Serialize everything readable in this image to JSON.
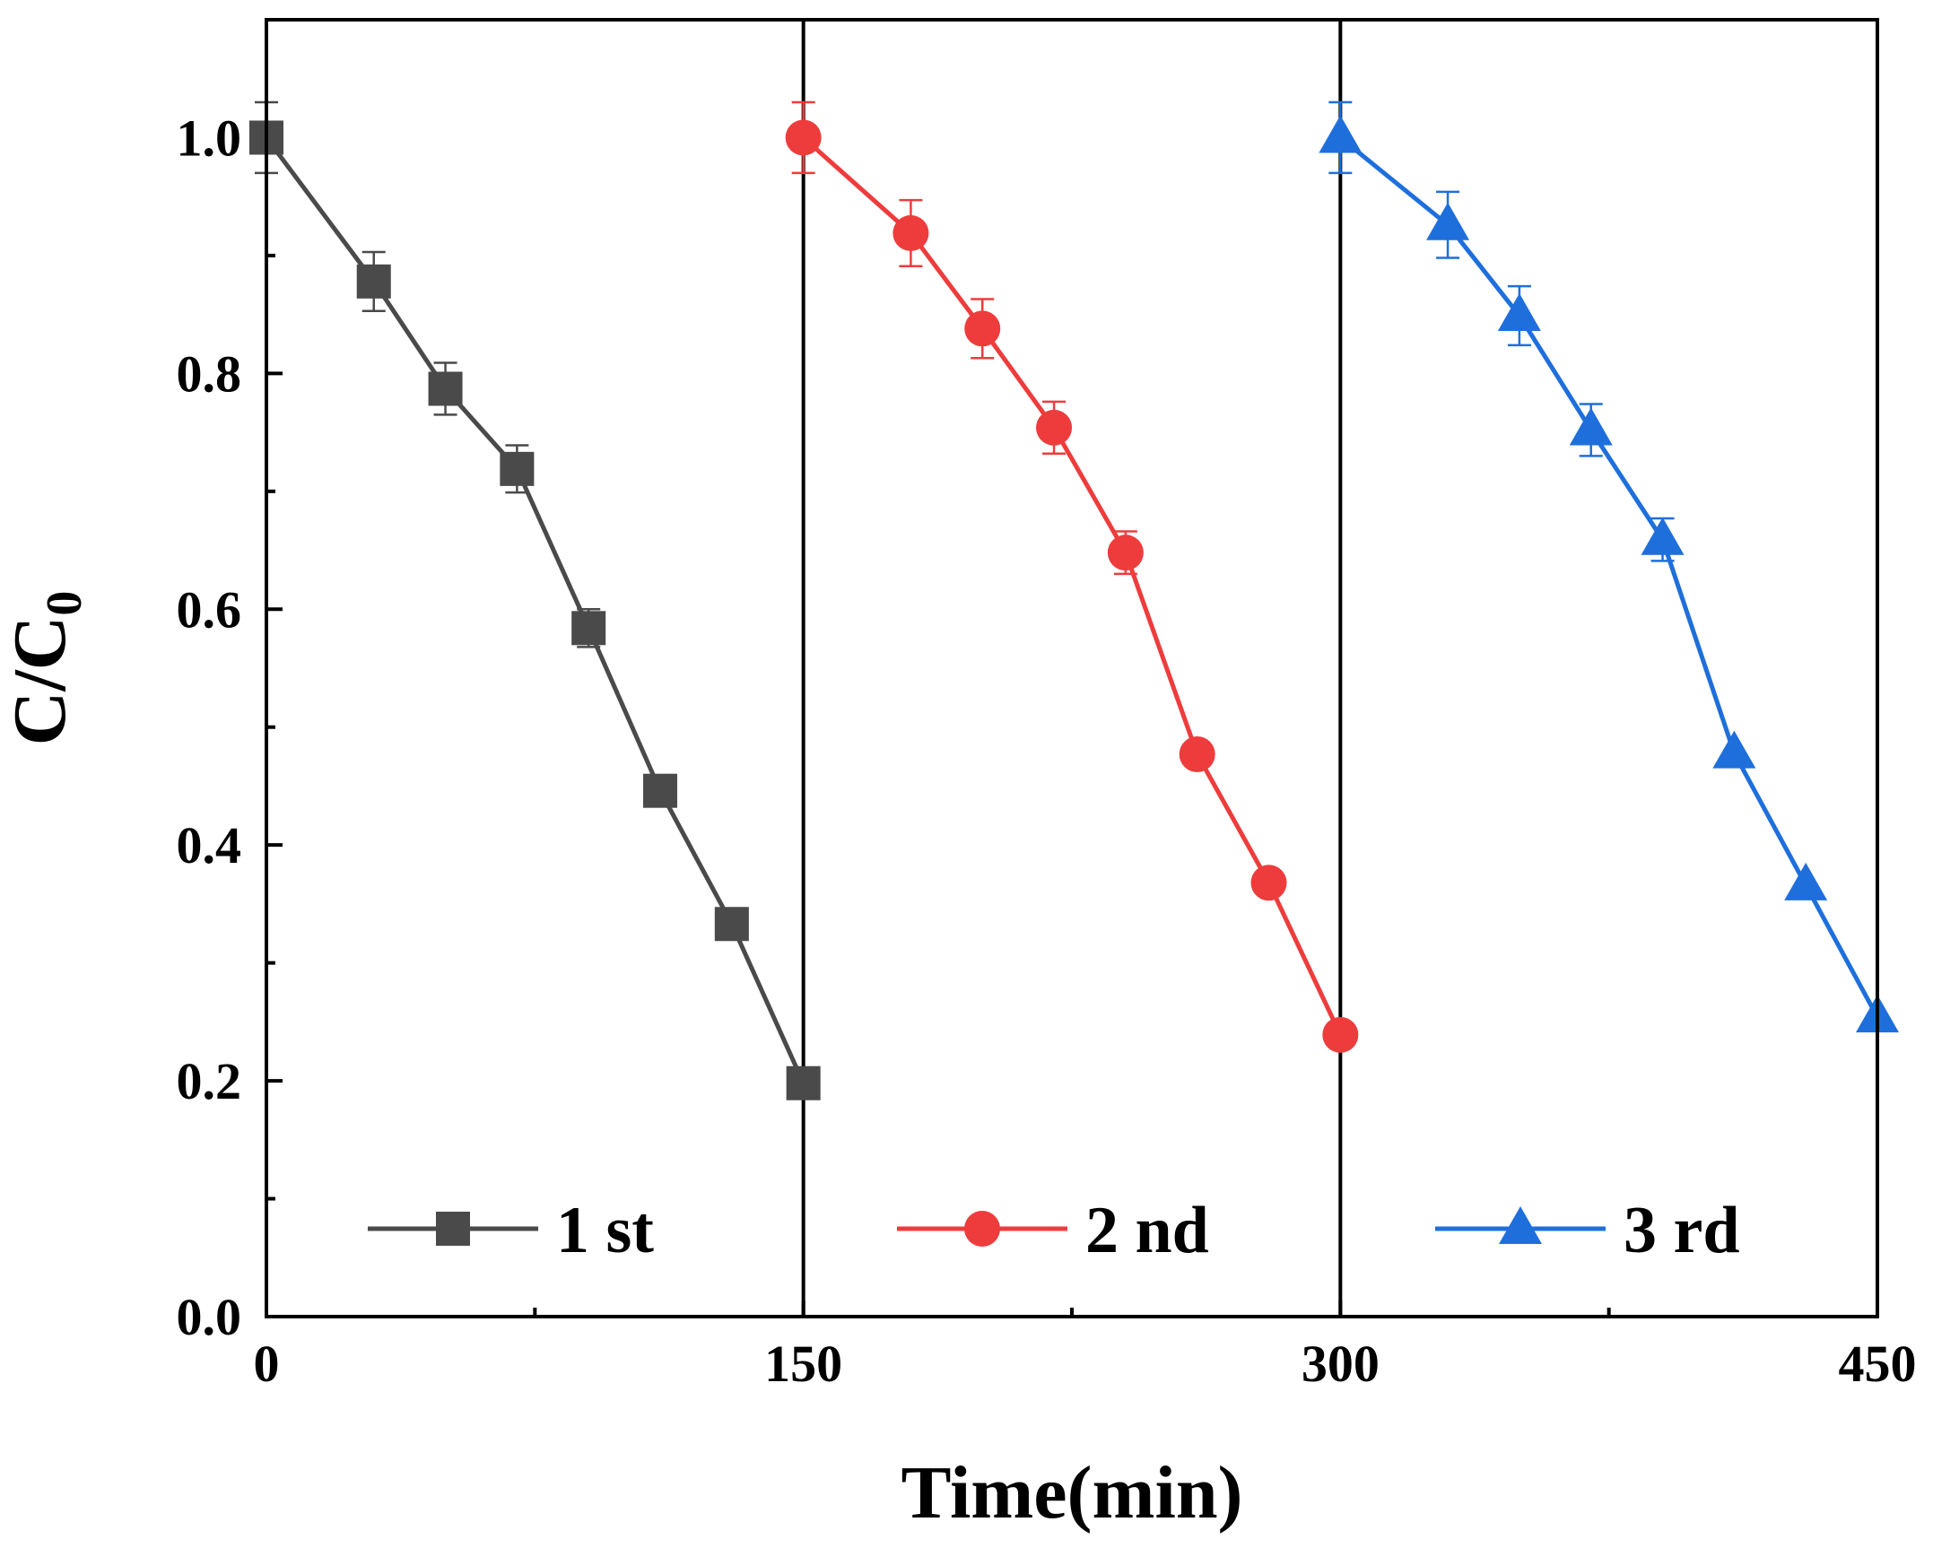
{
  "chart_data": {
    "type": "line",
    "title": "",
    "xlabel": "Time(min)",
    "ylabel_main": "C/C",
    "ylabel_sub": "0",
    "xlim": [
      0,
      450
    ],
    "ylim": [
      0,
      1.1
    ],
    "xticks": [
      0,
      150,
      300,
      450
    ],
    "xtick_labels": [
      "0",
      "150",
      "300",
      "450"
    ],
    "xminor": [
      75,
      225,
      375
    ],
    "yticks": [
      0.0,
      0.2,
      0.4,
      0.6,
      0.8,
      1.0
    ],
    "ytick_labels": [
      "0.0",
      "0.2",
      "0.4",
      "0.6",
      "0.8",
      "1.0"
    ],
    "yminor": [
      0.1,
      0.3,
      0.5,
      0.7,
      0.9
    ],
    "dividers": [
      150,
      300
    ],
    "legend_position": "bottom",
    "series": [
      {
        "name": "1 st",
        "color": "#4a4a4a",
        "marker": "square",
        "x": [
          0,
          30,
          50,
          70,
          90,
          110,
          130,
          150
        ],
        "y": [
          1.0,
          0.878,
          0.787,
          0.719,
          0.584,
          0.446,
          0.333,
          0.198
        ],
        "err": [
          0.03,
          0.025,
          0.022,
          0.02,
          0.016,
          0.0,
          0.0,
          0.0
        ]
      },
      {
        "name": "2 nd",
        "color": "#ee3c3c",
        "marker": "circle",
        "x": [
          150,
          180,
          200,
          220,
          240,
          260,
          280,
          300
        ],
        "y": [
          1.0,
          0.919,
          0.838,
          0.754,
          0.648,
          0.477,
          0.368,
          0.239
        ],
        "err": [
          0.03,
          0.028,
          0.025,
          0.022,
          0.018,
          0.0,
          0.0,
          0.0
        ]
      },
      {
        "name": "3 rd",
        "color": "#1e6fdc",
        "marker": "triangle",
        "x": [
          300,
          330,
          350,
          370,
          390,
          410,
          430,
          450
        ],
        "y": [
          1.0,
          0.926,
          0.849,
          0.752,
          0.659,
          0.478,
          0.366,
          0.254
        ],
        "err": [
          0.03,
          0.028,
          0.025,
          0.022,
          0.018,
          0.0,
          0.0,
          0.0
        ]
      }
    ]
  }
}
